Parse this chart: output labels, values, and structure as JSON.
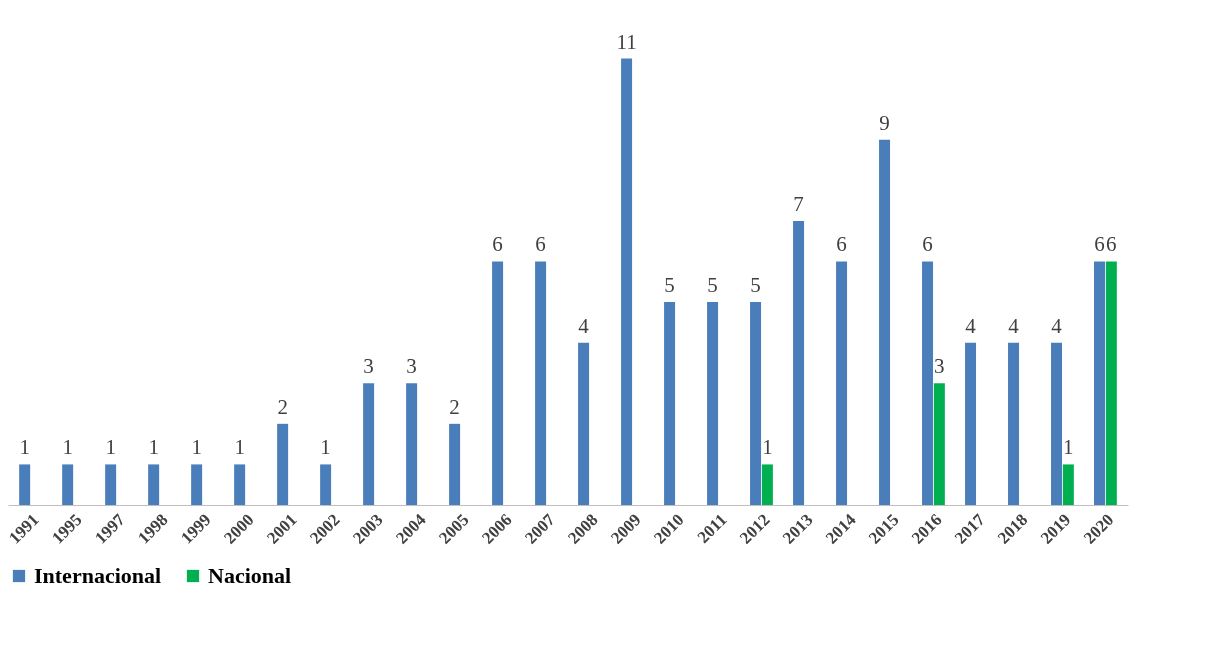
{
  "chart_data": {
    "type": "bar",
    "categories": [
      "1991",
      "1995",
      "1997",
      "1998",
      "1999",
      "2000",
      "2001",
      "2002",
      "2003",
      "2004",
      "2005",
      "2006",
      "2007",
      "2008",
      "2009",
      "2010",
      "2011",
      "2012",
      "2013",
      "2014",
      "2015",
      "2016",
      "2017",
      "2018",
      "2019",
      "2020"
    ],
    "series": [
      {
        "name": "Internacional",
        "color": "#4a7ebb",
        "values": [
          1,
          1,
          1,
          1,
          1,
          1,
          2,
          1,
          3,
          3,
          2,
          6,
          6,
          4,
          11,
          5,
          5,
          5,
          7,
          6,
          9,
          6,
          4,
          4,
          4,
          6
        ]
      },
      {
        "name": "Nacional",
        "color": "#00b050",
        "values": [
          null,
          null,
          null,
          null,
          null,
          null,
          null,
          null,
          null,
          null,
          null,
          null,
          null,
          null,
          null,
          null,
          null,
          1,
          null,
          null,
          null,
          3,
          null,
          null,
          1,
          6
        ]
      }
    ],
    "data_labels": true,
    "grid": false,
    "legend": "bottom"
  }
}
